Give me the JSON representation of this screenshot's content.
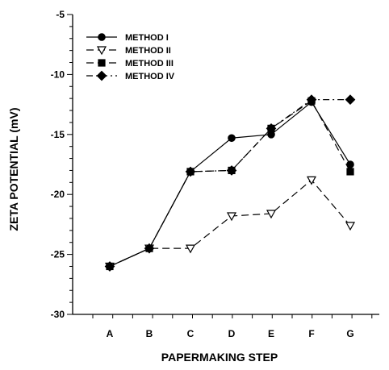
{
  "chart_data": {
    "type": "line",
    "xlabel": "PAPERMAKING STEP",
    "ylabel": "ZETA POTENTIAL (mV)",
    "categories": [
      "A",
      "B",
      "C",
      "D",
      "E",
      "F",
      "G"
    ],
    "ylim": [
      -30,
      -5
    ],
    "yticks": [
      -30,
      -25,
      -20,
      -15,
      -10,
      -5
    ],
    "grid": false,
    "legend_position": "top-left",
    "series": [
      {
        "name": "METHOD I",
        "marker": "circle",
        "fill": "#000000",
        "dash": "solid",
        "x": [
          0,
          1,
          2,
          3,
          4,
          5,
          6
        ],
        "values": [
          -26.0,
          -24.5,
          -18.1,
          -15.3,
          -15.0,
          -12.3,
          -17.5
        ]
      },
      {
        "name": "METHOD II",
        "marker": "triangle",
        "fill": "#ffffff",
        "dash": "longdash",
        "x": [
          0,
          1,
          2,
          3,
          4,
          5,
          6
        ],
        "values": [
          -26.0,
          -24.5,
          -24.5,
          -21.8,
          -21.6,
          -18.8,
          -22.6
        ]
      },
      {
        "name": "METHOD III",
        "marker": "square",
        "fill": "#000000",
        "dash": "longdash",
        "x": [
          0,
          1,
          2,
          3,
          4,
          5,
          6
        ],
        "values": [
          -26.0,
          -24.5,
          -18.1,
          -18.0,
          -14.5,
          -12.2,
          -18.1
        ]
      },
      {
        "name": "METHOD IV",
        "marker": "diamond",
        "fill": "#000000",
        "dash": "dashdot",
        "x": [
          0,
          1,
          2,
          3,
          4,
          5,
          6
        ],
        "values": [
          -26.0,
          -24.5,
          -18.1,
          -18.0,
          -14.5,
          -12.1,
          -12.1
        ]
      }
    ]
  }
}
